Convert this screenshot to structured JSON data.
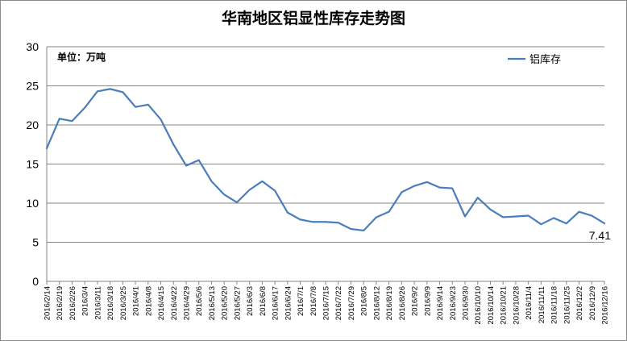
{
  "chart_data": {
    "type": "line",
    "title": "华南地区铝显性库存走势图",
    "unit_label": "单位：万吨",
    "xlabel": "",
    "ylabel": "",
    "ylim": [
      0,
      30
    ],
    "yticks": [
      0,
      5,
      10,
      15,
      20,
      25,
      30
    ],
    "grid": true,
    "legend_position": "top-right",
    "colors": {
      "line": "#4a7ebb",
      "grid": "#868686",
      "axis": "#868686"
    },
    "categories": [
      "2016/2/14",
      "2016/2/19",
      "2016/2/26",
      "2016/3/4",
      "2016/3/11",
      "2016/3/18",
      "2016/3/25",
      "2016/4/1",
      "2016/4/8",
      "2016/4/15",
      "2016/4/22",
      "2016/4/29",
      "2016/5/6",
      "2016/5/13",
      "2016/5/20",
      "2016/5/27",
      "2016/6/3",
      "2016/6/8",
      "2016/6/17",
      "2016/6/24",
      "2016/7/1",
      "2016/7/8",
      "2016/7/15",
      "2016/7/22",
      "2016/7/29",
      "2016/8/5",
      "2016/8/12",
      "2016/8/19",
      "2016/8/26",
      "2016/9/2",
      "2016/9/9",
      "2016/9/14",
      "2016/9/23",
      "2016/9/30",
      "2016/10/10",
      "2016/10/14",
      "2016/10/21",
      "2016/10/28",
      "2016/11/4",
      "2016/11/11",
      "2016/11/18",
      "2016/11/25",
      "2016/12/2",
      "2016/12/9",
      "2016/12/16"
    ],
    "series": [
      {
        "name": "铝库存",
        "values": [
          17.0,
          20.8,
          20.5,
          22.2,
          24.3,
          24.6,
          24.2,
          22.3,
          22.6,
          20.7,
          17.5,
          14.8,
          15.5,
          12.8,
          11.1,
          10.1,
          11.7,
          12.8,
          11.6,
          8.8,
          7.9,
          7.6,
          7.6,
          7.5,
          6.7,
          6.5,
          8.2,
          8.9,
          11.4,
          12.2,
          12.7,
          12.0,
          11.9,
          8.3,
          10.7,
          9.2,
          8.2,
          8.3,
          8.4,
          7.3,
          8.1,
          7.4,
          8.9,
          8.4,
          7.41
        ]
      }
    ],
    "data_labels": [
      {
        "series": 0,
        "index": 44,
        "text": "7.41"
      }
    ]
  }
}
